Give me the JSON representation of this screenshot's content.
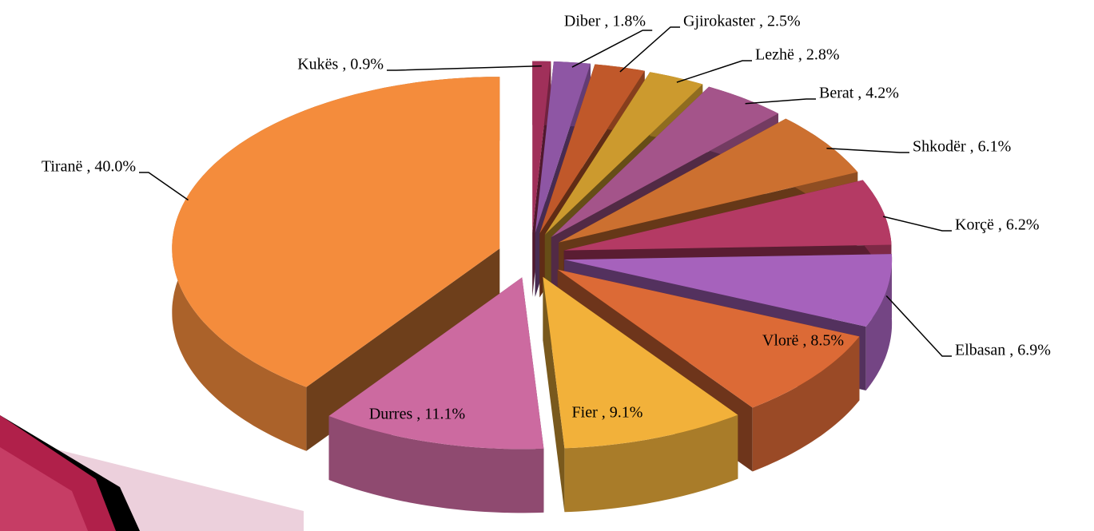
{
  "chart_data": {
    "type": "pie",
    "values": [
      0.9,
      1.8,
      2.5,
      2.8,
      4.2,
      6.1,
      6.2,
      6.9,
      8.5,
      9.1,
      11.1,
      40.0
    ],
    "value_labels": [
      "Kukës , 0.9%",
      "Diber , 1.8%",
      "Gjirokaster , 2.5%",
      "Lezhë , 2.8%",
      "Berat , 4.2%",
      "Shkodër , 6.1%",
      "Korçë , 6.2%",
      "Elbasan , 6.9%",
      "Vlorë , 8.5%",
      "Fier , 9.1%",
      "Durres , 11.1%",
      "Tiranë , 40.0%"
    ],
    "colors": [
      "#a0305a",
      "#8e56a4",
      "#c0582a",
      "#cc9a2e",
      "#a4548a",
      "#cc7030",
      "#b43a64",
      "#a662bc",
      "#dc6a36",
      "#f2b13a",
      "#cc6aa0",
      "#f48c3c"
    ]
  }
}
